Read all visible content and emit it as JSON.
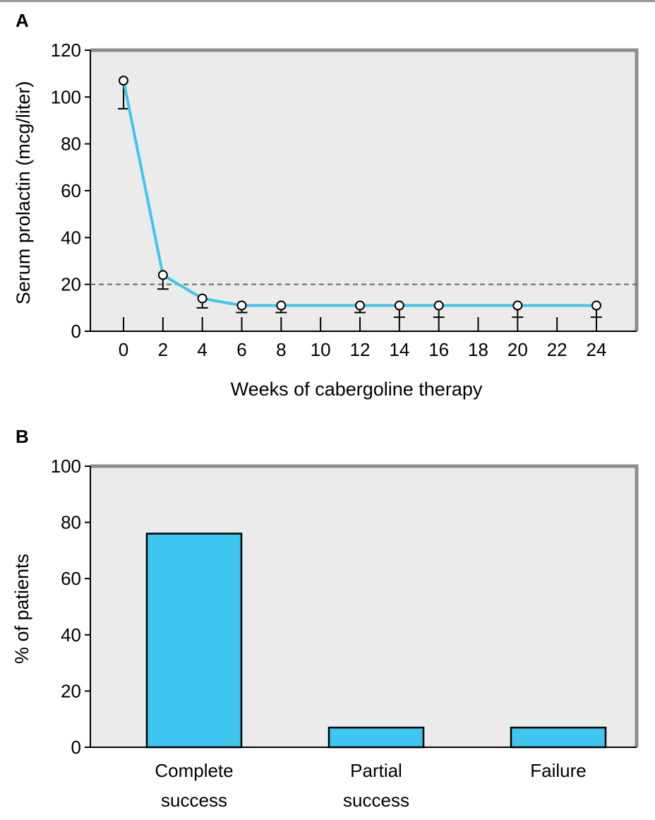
{
  "colors": {
    "series": "#3ec6f0",
    "plot_bg": "#ebebeb",
    "frame": "#8c8c8c",
    "threshold": "#666666"
  },
  "chart_data": [
    {
      "panel": "A",
      "type": "line",
      "xlabel": "Weeks of cabergoline therapy",
      "ylabel": "Serum prolactin (mcg/liter)",
      "xlim": [
        -2,
        26
      ],
      "ylim": [
        0,
        120
      ],
      "xticks": [
        "0",
        "2",
        "4",
        "6",
        "8",
        "10",
        "12",
        "14",
        "16",
        "18",
        "20",
        "22",
        "24"
      ],
      "yticks": [
        "0",
        "20",
        "40",
        "60",
        "80",
        "100",
        "120"
      ],
      "reference_line": {
        "y": 20,
        "style": "dashed"
      },
      "points": [
        {
          "x": 0,
          "y": 107,
          "err": 12
        },
        {
          "x": 2,
          "y": 24,
          "err": 6
        },
        {
          "x": 4,
          "y": 14,
          "err": 4
        },
        {
          "x": 6,
          "y": 11,
          "err": 3
        },
        {
          "x": 8,
          "y": 11,
          "err": 3
        },
        {
          "x": 12,
          "y": 11,
          "err": 3
        },
        {
          "x": 14,
          "y": 11,
          "err": 5
        },
        {
          "x": 16,
          "y": 11,
          "err": 5
        },
        {
          "x": 20,
          "y": 11,
          "err": 5
        },
        {
          "x": 24,
          "y": 11,
          "err": 5
        }
      ],
      "grid": false
    },
    {
      "panel": "B",
      "type": "bar",
      "ylabel": "% of patients",
      "ylim": [
        0,
        100
      ],
      "yticks": [
        "0",
        "20",
        "40",
        "60",
        "80",
        "100"
      ],
      "categories": [
        [
          "Complete",
          "success"
        ],
        [
          "Partial",
          "success"
        ],
        [
          "Failure"
        ]
      ],
      "values": [
        76,
        7,
        7
      ],
      "grid": false
    }
  ]
}
